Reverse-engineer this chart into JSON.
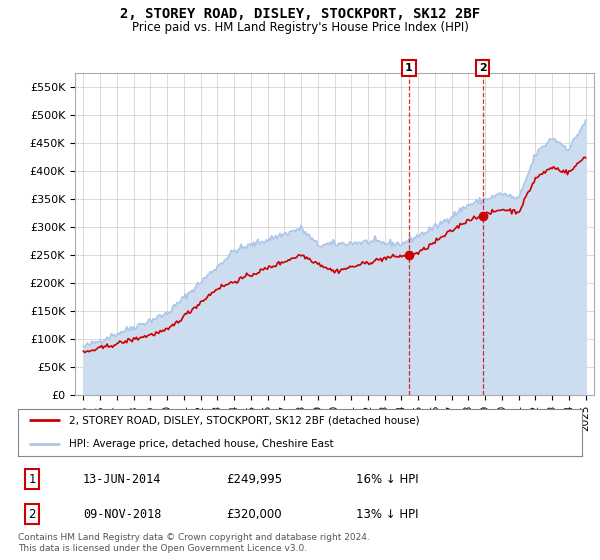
{
  "title": "2, STOREY ROAD, DISLEY, STOCKPORT, SK12 2BF",
  "subtitle": "Price paid vs. HM Land Registry's House Price Index (HPI)",
  "ylim": [
    0,
    575000
  ],
  "yticks": [
    0,
    50000,
    100000,
    150000,
    200000,
    250000,
    300000,
    350000,
    400000,
    450000,
    500000,
    550000
  ],
  "ytick_labels": [
    "£0",
    "£50K",
    "£100K",
    "£150K",
    "£200K",
    "£250K",
    "£300K",
    "£350K",
    "£400K",
    "£450K",
    "£500K",
    "£550K"
  ],
  "xmin": 1994.5,
  "xmax": 2025.5,
  "sale1_date_num": 2014.45,
  "sale1_price": 249995,
  "sale1_label": "1",
  "sale2_date_num": 2018.86,
  "sale2_price": 320000,
  "sale2_label": "2",
  "legend_line1": "2, STOREY ROAD, DISLEY, STOCKPORT, SK12 2BF (detached house)",
  "legend_line2": "HPI: Average price, detached house, Cheshire East",
  "table_row1": [
    "1",
    "13-JUN-2014",
    "£249,995",
    "16% ↓ HPI"
  ],
  "table_row2": [
    "2",
    "09-NOV-2018",
    "£320,000",
    "13% ↓ HPI"
  ],
  "footnote1": "Contains HM Land Registry data © Crown copyright and database right 2024.",
  "footnote2": "This data is licensed under the Open Government Licence v3.0.",
  "hpi_color": "#aec6e8",
  "hpi_fill_color": "#ccddf0",
  "price_color": "#cc0000",
  "vline_color": "#cc0000",
  "background_color": "#ffffff",
  "grid_color": "#cccccc"
}
